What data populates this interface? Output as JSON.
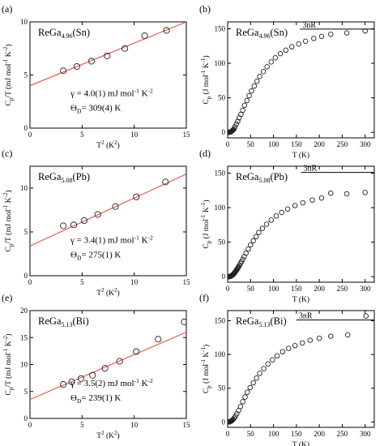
{
  "chart_data": [
    {
      "panel": "(a)",
      "type": "scatter",
      "sample": "ReGa",
      "sub": "4.96",
      "elem": "(Sn)",
      "xlabel": "T",
      "xsup": "2",
      "xunit": " (K",
      "xunitsup": "2",
      "xunitend": ")",
      "ylabel": "C",
      "ysub": "p",
      "ymid": "/T (mJ mol",
      "ysup1": "-1",
      "ymid2": " K",
      "ysup2": "-2",
      "yend": ")",
      "xlim": [
        0,
        15
      ],
      "ylim": [
        0,
        10
      ],
      "xticks": [
        "0",
        "5",
        "10",
        "15"
      ],
      "xtick_values": [
        0,
        5,
        10,
        15
      ],
      "yticks": [
        "0",
        "5",
        "10"
      ],
      "ytick_values": [
        0,
        5,
        10
      ],
      "points": [
        [
          3.2,
          5.4
        ],
        [
          4.5,
          5.8
        ],
        [
          5.9,
          6.3
        ],
        [
          7.4,
          6.8
        ],
        [
          9.1,
          7.5
        ],
        [
          11.0,
          8.7
        ],
        [
          13.1,
          9.2
        ]
      ],
      "fit": [
        [
          0,
          4.0
        ],
        [
          15,
          10.0
        ]
      ],
      "gamma_text": "γ = 4.0(1) mJ mol",
      "gamma_sup1": "-1",
      "gamma_mid": " K",
      "gamma_sup2": "-2",
      "theta_text": "Θ",
      "theta_sub": "D",
      "theta_val": "= 309(4) K"
    },
    {
      "panel": "(b)",
      "type": "scatter",
      "sample": "ReGa",
      "sub": "4.96",
      "elem": "(Sn)",
      "xlabel": "T (K)",
      "ylabel": "C",
      "ysub": "p",
      "ymid": " (J mol",
      "ysup1": "-1",
      "ymid2": " K",
      "ysup2": "-1",
      "yend": ")",
      "xlim": [
        0,
        320
      ],
      "ylim": [
        -8,
        160
      ],
      "xticks": [
        "0",
        "50",
        "100",
        "150",
        "200",
        "250",
        "300"
      ],
      "xtick_values": [
        0,
        50,
        100,
        150,
        200,
        250,
        300
      ],
      "yticks": [
        "0",
        "50",
        "100",
        "150"
      ],
      "ytick_values": [
        0,
        50,
        100,
        150
      ],
      "ref_label": "3nR",
      "ref_value": 149.6,
      "ref_range": [
        158,
        320
      ],
      "points": [
        [
          2,
          0
        ],
        [
          3,
          0.1
        ],
        [
          4,
          0.2
        ],
        [
          5,
          0.4
        ],
        [
          6,
          0.6
        ],
        [
          7,
          0.9
        ],
        [
          8,
          1.3
        ],
        [
          9,
          1.8
        ],
        [
          10,
          2.4
        ],
        [
          11,
          3
        ],
        [
          12,
          3.7
        ],
        [
          14,
          5
        ],
        [
          16,
          8
        ],
        [
          19,
          12
        ],
        [
          22,
          16
        ],
        [
          25,
          21
        ],
        [
          29,
          26
        ],
        [
          33,
          32
        ],
        [
          37,
          39
        ],
        [
          42,
          46
        ],
        [
          47,
          53
        ],
        [
          52,
          60
        ],
        [
          58,
          67
        ],
        [
          64,
          74
        ],
        [
          70,
          81
        ],
        [
          78,
          88
        ],
        [
          86,
          95
        ],
        [
          95,
          102
        ],
        [
          104,
          108
        ],
        [
          115,
          114
        ],
        [
          127,
          119
        ],
        [
          140,
          124
        ],
        [
          155,
          128
        ],
        [
          170,
          132
        ],
        [
          188,
          136
        ],
        [
          205,
          139
        ],
        [
          225,
          142
        ],
        [
          260,
          144
        ],
        [
          300,
          147
        ]
      ]
    },
    {
      "panel": "(c)",
      "type": "scatter",
      "sample": "ReGa",
      "sub": "5.08",
      "elem": "(Pb)",
      "xlabel": "T",
      "xsup": "2",
      "xunit": " (K",
      "xunitsup": "2",
      "xunitend": ")",
      "ylabel": "C",
      "ysub": "p",
      "ymid": "/T (mJ mol",
      "ysup1": "-1",
      "ymid2": " K",
      "ysup2": "-2",
      "yend": ")",
      "xlim": [
        0,
        15
      ],
      "ylim": [
        0,
        12.5
      ],
      "xticks": [
        "0",
        "5",
        "10",
        "15"
      ],
      "xtick_values": [
        0,
        5,
        10,
        15
      ],
      "yticks": [
        "0",
        "5",
        "10"
      ],
      "ytick_values": [
        0,
        5,
        10
      ],
      "points": [
        [
          3.2,
          5.7
        ],
        [
          4.2,
          5.8
        ],
        [
          5.2,
          6.3
        ],
        [
          6.5,
          7.0
        ],
        [
          8.2,
          7.9
        ],
        [
          10.2,
          9.0
        ],
        [
          13.0,
          10.7
        ]
      ],
      "fit": [
        [
          0,
          3.4
        ],
        [
          15,
          11.6
        ]
      ],
      "gamma_text": "γ = 3.4(1) mJ mol",
      "gamma_sup1": "-1",
      "gamma_mid": " K",
      "gamma_sup2": "-2",
      "theta_text": "Θ",
      "theta_sub": "D",
      "theta_val": "= 275(1) K"
    },
    {
      "panel": "(d)",
      "type": "scatter",
      "sample": "ReGa",
      "sub": "5.08",
      "elem": "(Pb)",
      "xlabel": "T (K)",
      "ylabel": "C",
      "ysub": "p",
      "ymid": " (J mol",
      "ysup1": "-1",
      "ymid2": " K",
      "ysup2": "-1",
      "yend": ")",
      "xlim": [
        0,
        320
      ],
      "ylim": [
        -8,
        160
      ],
      "xticks": [
        "0",
        "50",
        "100",
        "150",
        "200",
        "250",
        "300"
      ],
      "xtick_values": [
        0,
        50,
        100,
        150,
        200,
        250,
        300
      ],
      "yticks": [
        "0",
        "50",
        "100",
        "150"
      ],
      "ytick_values": [
        0,
        50,
        100,
        150
      ],
      "ref_label": "3nR",
      "ref_value": 151,
      "ref_range": [
        160,
        320
      ],
      "points": [
        [
          2,
          0
        ],
        [
          3,
          0.1
        ],
        [
          4,
          0.2
        ],
        [
          5,
          0.4
        ],
        [
          6,
          0.6
        ],
        [
          7,
          0.9
        ],
        [
          8,
          1.2
        ],
        [
          9,
          1.6
        ],
        [
          10,
          2.1
        ],
        [
          11,
          2.6
        ],
        [
          12,
          3.2
        ],
        [
          13,
          3.9
        ],
        [
          14,
          4.6
        ],
        [
          15,
          5.4
        ],
        [
          16,
          6.3
        ],
        [
          17,
          7.2
        ],
        [
          18,
          8.1
        ],
        [
          19,
          9.1
        ],
        [
          20,
          10.1
        ],
        [
          21,
          11.2
        ],
        [
          22,
          12.3
        ],
        [
          23,
          13.4
        ],
        [
          24,
          14.5
        ],
        [
          26,
          16.8
        ],
        [
          28,
          19.2
        ],
        [
          30,
          21.6
        ],
        [
          33,
          25
        ],
        [
          36,
          29
        ],
        [
          40,
          34
        ],
        [
          45,
          40
        ],
        [
          50,
          46
        ],
        [
          56,
          52
        ],
        [
          62,
          58
        ],
        [
          68,
          64
        ],
        [
          76,
          70
        ],
        [
          85,
          76
        ],
        [
          95,
          82
        ],
        [
          106,
          88
        ],
        [
          118,
          93
        ],
        [
          131,
          98
        ],
        [
          147,
          103
        ],
        [
          164,
          107
        ],
        [
          185,
          111
        ],
        [
          205,
          114
        ],
        [
          225,
          121
        ],
        [
          260,
          120
        ],
        [
          300,
          122
        ]
      ]
    },
    {
      "panel": "(e)",
      "type": "scatter",
      "sample": "ReGa",
      "sub": "5.13",
      "elem": "(Bi)",
      "xlabel": "T",
      "xsup": "2",
      "xunit": " (K",
      "xunitsup": "2",
      "xunitend": ")",
      "ylabel": "C",
      "ysub": "p",
      "ymid": "/T (mJ mol",
      "ysup1": "-1",
      "ymid2": " K",
      "ysup2": "-2",
      "yend": ")",
      "xlim": [
        0,
        15
      ],
      "ylim": [
        0,
        20
      ],
      "xticks": [
        "0",
        "5",
        "10",
        "15"
      ],
      "xtick_values": [
        0,
        5,
        10,
        15
      ],
      "yticks": [
        "0",
        "5",
        "10",
        "15",
        "20"
      ],
      "ytick_values": [
        0,
        5,
        10,
        15,
        20
      ],
      "points": [
        [
          3.2,
          6.3
        ],
        [
          4.0,
          6.8
        ],
        [
          4.9,
          7.4
        ],
        [
          6.0,
          8.0
        ],
        [
          7.2,
          9.3
        ],
        [
          8.6,
          10.6
        ],
        [
          10.2,
          12.4
        ],
        [
          12.3,
          14.7
        ],
        [
          14.8,
          17.9
        ]
      ],
      "fit": [
        [
          0,
          3.5
        ],
        [
          15,
          16.0
        ]
      ],
      "gamma_text": "γ = 3.5(2) mJ mol",
      "gamma_sup1": "-1",
      "gamma_mid": " K",
      "gamma_sup2": "-2",
      "theta_text": "Θ",
      "theta_sub": "D",
      "theta_val": "= 239(1) K"
    },
    {
      "panel": "(f)",
      "type": "scatter",
      "sample": "ReGa",
      "sub": "5.13",
      "elem": "(Bi)",
      "xlabel": "T (K)",
      "ylabel": "C",
      "ysub": "p",
      "ymid": " (J mol",
      "ysup1": "-1",
      "ymid2": " K",
      "ysup2": "-1",
      "yend": ")",
      "xlim": [
        0,
        320
      ],
      "ylim": [
        -8,
        165
      ],
      "xticks": [
        "0",
        "50",
        "100",
        "150",
        "200",
        "250",
        "300"
      ],
      "xtick_values": [
        0,
        50,
        100,
        150,
        200,
        250,
        300
      ],
      "yticks": [
        "0",
        "50",
        "100",
        "150"
      ],
      "ytick_values": [
        0,
        50,
        100,
        150
      ],
      "ref_label": "3nR",
      "ref_value": 151,
      "ref_range": [
        150,
        320
      ],
      "points": [
        [
          2,
          0
        ],
        [
          3,
          0.1
        ],
        [
          4,
          0.2
        ],
        [
          5,
          0.4
        ],
        [
          6,
          0.7
        ],
        [
          7,
          1.0
        ],
        [
          8,
          1.4
        ],
        [
          9,
          1.9
        ],
        [
          10,
          2.5
        ],
        [
          12,
          3.8
        ],
        [
          14,
          5.5
        ],
        [
          17,
          8.5
        ],
        [
          20,
          12
        ],
        [
          24,
          17
        ],
        [
          28,
          23
        ],
        [
          33,
          30
        ],
        [
          38,
          37
        ],
        [
          43,
          44
        ],
        [
          49,
          51
        ],
        [
          56,
          58
        ],
        [
          63,
          65
        ],
        [
          70,
          72
        ],
        [
          79,
          79
        ],
        [
          88,
          86
        ],
        [
          98,
          92
        ],
        [
          108,
          98
        ],
        [
          120,
          104
        ],
        [
          133,
          109
        ],
        [
          147,
          113
        ],
        [
          163,
          117
        ],
        [
          180,
          121
        ],
        [
          200,
          124
        ],
        [
          225,
          127
        ],
        [
          262,
          129
        ],
        [
          302,
          157
        ]
      ]
    }
  ]
}
